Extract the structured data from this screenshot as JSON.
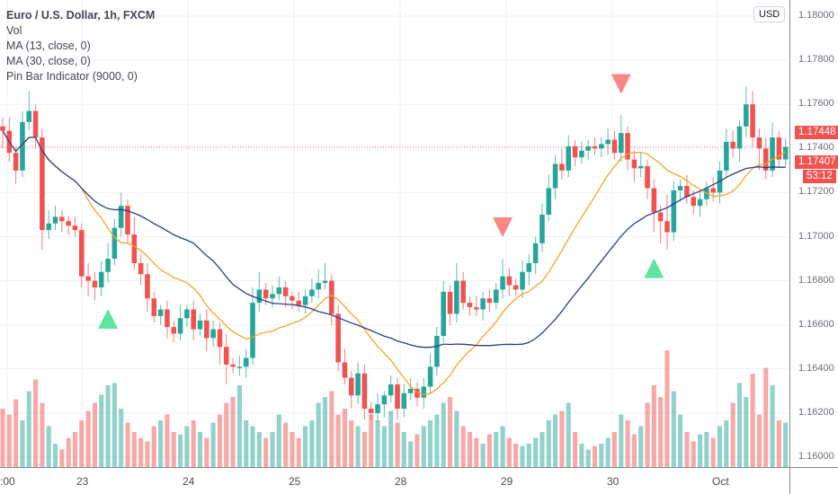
{
  "legend": {
    "title": "Euro / U.S. Dollar, 1h, FXCM",
    "items": [
      "Vol",
      "MA (13, close, 0)",
      "MA (30, close, 0)",
      "Pin Bar Indicator (9000, 0)"
    ]
  },
  "currency_button": "USD",
  "price_boxes": {
    "high_label": "1.17448",
    "last_price": "1.17407",
    "countdown": "53:12"
  },
  "colors": {
    "up": "#26a69a",
    "down": "#ef5350",
    "ma13": "#f7a325",
    "ma30": "#2a3c8f",
    "signal_up": "#5fe3a1",
    "signal_down": "#f88888",
    "grid": "#eef0f3"
  },
  "chart_data": {
    "type": "candlestick",
    "title": "Euro / U.S. Dollar, 1h, FXCM",
    "ylim": [
      1.1595,
      1.18
    ],
    "y_ticks": [
      "1.16000",
      "1.16200",
      "1.16400",
      "1.16600",
      "1.16800",
      "1.17000",
      "1.17200",
      "1.17400",
      "1.17600",
      "1.17800",
      "1.18000"
    ],
    "x_ticks": [
      ":00",
      "23",
      "24",
      "25",
      "28",
      "29",
      "30",
      "Oct"
    ],
    "first_open": 1.175,
    "closes": [
      1.1748,
      1.1738,
      1.173,
      1.1752,
      1.1757,
      1.1745,
      1.1703,
      1.1706,
      1.1709,
      1.1707,
      1.1705,
      1.1703,
      1.1682,
      1.168,
      1.1677,
      1.1684,
      1.169,
      1.1704,
      1.1714,
      1.1701,
      1.1688,
      1.1683,
      1.1672,
      1.1664,
      1.1667,
      1.1659,
      1.1656,
      1.1663,
      1.1667,
      1.1658,
      1.1662,
      1.1654,
      1.1658,
      1.165,
      1.1642,
      1.1641,
      1.1641,
      1.1645,
      1.167,
      1.1676,
      1.1672,
      1.1674,
      1.1677,
      1.1673,
      1.1671,
      1.1669,
      1.1673,
      1.1676,
      1.1679,
      1.168,
      1.1665,
      1.1643,
      1.1636,
      1.1628,
      1.1638,
      1.1622,
      1.162,
      1.1624,
      1.1628,
      1.1633,
      1.1622,
      1.1629,
      1.1631,
      1.1627,
      1.1632,
      1.1641,
      1.1655,
      1.1675,
      1.1665,
      1.168,
      1.167,
      1.1668,
      1.1667,
      1.1672,
      1.167,
      1.1676,
      1.1682,
      1.1678,
      1.1676,
      1.1684,
      1.1688,
      1.1697,
      1.171,
      1.1722,
      1.1733,
      1.173,
      1.1741,
      1.1736,
      1.1739,
      1.1741,
      1.174,
      1.1742,
      1.1744,
      1.1738,
      1.1747,
      1.1735,
      1.1731,
      1.1732,
      1.1722,
      1.1711,
      1.1707,
      1.1702,
      1.1721,
      1.1723,
      1.1718,
      1.1714,
      1.1717,
      1.1722,
      1.172,
      1.173,
      1.1743,
      1.174,
      1.175,
      1.176,
      1.1745,
      1.174,
      1.173,
      1.1745,
      1.1735,
      1.17407
    ],
    "upper_wick_pips": [
      4,
      6,
      3,
      5,
      9,
      3,
      4,
      6,
      5,
      3,
      2,
      4,
      3,
      6,
      4,
      5,
      7,
      4,
      6,
      3,
      8,
      4,
      5,
      3,
      2,
      4,
      3,
      6,
      2,
      4,
      3,
      5,
      4,
      3,
      6,
      3,
      5,
      4,
      7,
      8,
      3,
      4,
      5,
      3,
      2,
      4,
      3,
      5,
      6,
      8,
      3,
      4,
      6,
      3,
      5,
      4,
      3,
      5,
      2,
      4,
      3,
      4,
      5,
      3,
      4,
      6,
      4,
      5,
      3,
      8,
      4,
      3,
      5,
      3,
      4,
      3,
      8,
      4,
      3,
      5,
      4,
      3,
      5,
      6,
      4,
      7,
      5,
      3,
      4,
      3,
      4,
      3,
      5,
      4,
      8,
      3,
      4,
      6,
      3,
      4,
      3,
      12,
      4,
      3,
      5,
      3,
      4,
      3,
      5,
      4,
      6,
      5,
      3,
      8,
      6,
      4,
      5,
      7,
      3,
      4
    ],
    "lower_wick_pips": [
      8,
      4,
      6,
      3,
      4,
      5,
      9,
      4,
      3,
      5,
      4,
      3,
      5,
      7,
      6,
      4,
      5,
      3,
      4,
      4,
      3,
      5,
      6,
      3,
      4,
      5,
      4,
      3,
      4,
      5,
      3,
      6,
      4,
      8,
      9,
      3,
      4,
      5,
      3,
      4,
      3,
      4,
      3,
      5,
      4,
      3,
      4,
      3,
      4,
      3,
      5,
      4,
      3,
      6,
      4,
      5,
      3,
      4,
      6,
      3,
      5,
      4,
      3,
      4,
      5,
      3,
      4,
      3,
      5,
      4,
      3,
      4,
      3,
      5,
      4,
      3,
      4,
      5,
      3,
      4,
      6,
      5,
      4,
      3,
      5,
      4,
      3,
      4,
      3,
      4,
      3,
      4,
      5,
      3,
      4,
      5,
      6,
      4,
      5,
      9,
      10,
      8,
      4,
      5,
      3,
      4,
      5,
      3,
      4,
      5,
      3,
      4,
      6,
      5,
      4,
      10,
      4,
      3,
      4,
      3
    ],
    "volumes": [
      50,
      45,
      58,
      40,
      65,
      75,
      55,
      35,
      20,
      15,
      25,
      30,
      40,
      48,
      55,
      62,
      70,
      72,
      50,
      38,
      30,
      25,
      22,
      35,
      40,
      45,
      30,
      28,
      35,
      40,
      30,
      25,
      38,
      45,
      55,
      60,
      70,
      40,
      35,
      30,
      25,
      30,
      45,
      38,
      30,
      25,
      35,
      40,
      55,
      60,
      65,
      45,
      50,
      40,
      35,
      30,
      45,
      40,
      35,
      48,
      38,
      30,
      22,
      28,
      35,
      40,
      45,
      55,
      60,
      48,
      35,
      30,
      25,
      20,
      28,
      30,
      35,
      25,
      20,
      18,
      20,
      25,
      30,
      40,
      45,
      48,
      55,
      30,
      20,
      15,
      18,
      20,
      25,
      30,
      45,
      40,
      28,
      35,
      55,
      70,
      60,
      100,
      65,
      45,
      30,
      22,
      28,
      30,
      25,
      35,
      40,
      55,
      72,
      60,
      80,
      45,
      85,
      70,
      40,
      38
    ],
    "moving_averages": [
      {
        "name": "MA (13, close, 0)",
        "period": 13
      },
      {
        "name": "MA (30, close, 0)",
        "period": 30
      }
    ],
    "pin_bar_signals": [
      {
        "bar": 16,
        "direction": "bullish"
      },
      {
        "bar": 76,
        "direction": "bearish"
      },
      {
        "bar": 94,
        "direction": "bearish"
      },
      {
        "bar": 99,
        "direction": "bullish"
      }
    ]
  }
}
